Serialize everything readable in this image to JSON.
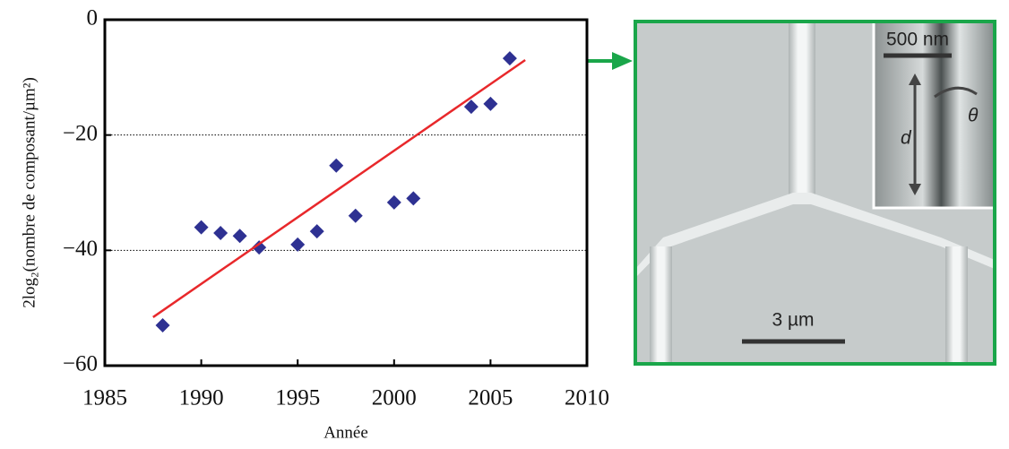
{
  "chart_data": {
    "type": "scatter",
    "x_label": "Année",
    "y_label": "2log₂(nombre de composant/µm²)",
    "xlim": [
      1985,
      2010
    ],
    "ylim": [
      -60,
      0
    ],
    "xticks": [
      1985,
      1990,
      1995,
      2000,
      2005,
      2010
    ],
    "yticks": [
      {
        "value": 0,
        "label": "0"
      },
      {
        "value": -20,
        "label": "−20"
      },
      {
        "value": -40,
        "label": "−40"
      },
      {
        "value": -60,
        "label": "−60"
      }
    ],
    "grid": true,
    "series": [
      {
        "mode": "markers",
        "color": "#2e3192",
        "x": [
          1988,
          1990,
          1991,
          1992,
          1993,
          1995,
          1996,
          1997,
          1998,
          2000,
          2001,
          2004,
          2005,
          2006
        ],
        "values": [
          -53,
          -36,
          -37,
          -37.5,
          -39.5,
          -39,
          -36.7,
          -25.3,
          -34,
          -31.7,
          -31,
          -15.1,
          -14.6,
          -6.7
        ]
      },
      {
        "mode": "line",
        "color": "#e8282b",
        "x": [
          1987.5,
          2006.8
        ],
        "values": [
          -51.6,
          -7
        ]
      }
    ]
  },
  "micrograph": {
    "scale_bar": "3 µm",
    "inset_scale_bar": "500 nm",
    "inset_labels": [
      "d",
      "θ"
    ]
  }
}
